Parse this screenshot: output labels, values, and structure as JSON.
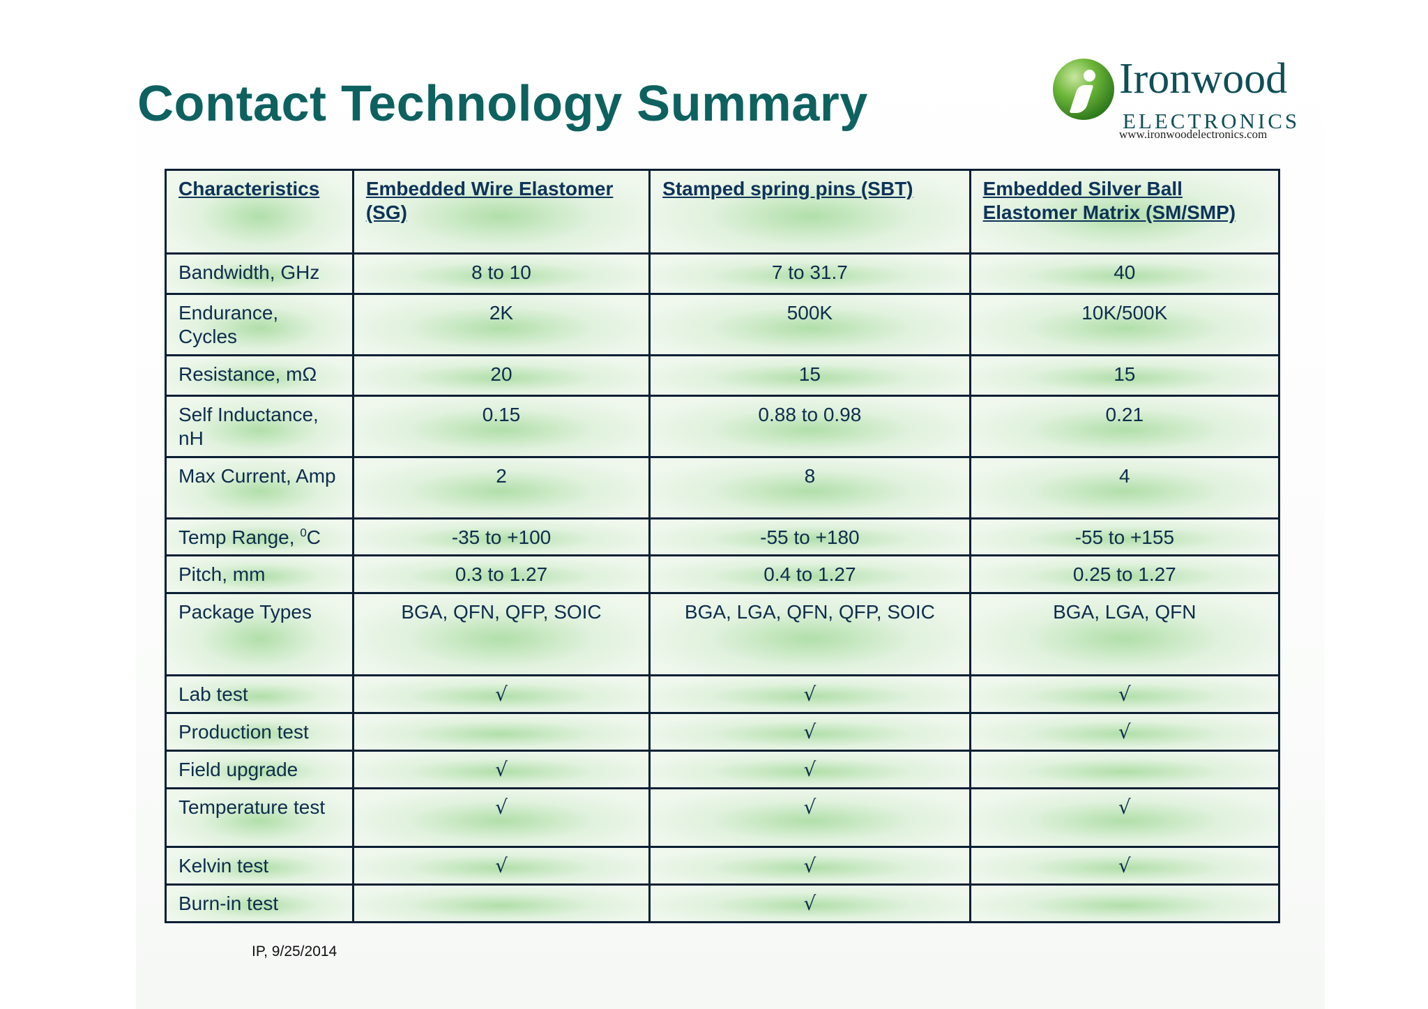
{
  "slide": {
    "title": "Contact Technology Summary",
    "footer": "IP, 9/25/2014"
  },
  "logo": {
    "icon": "ironwood-i-logo-icon",
    "name": "Ironwood",
    "subtitle": "ELECTRONICS",
    "url": "www.ironwoodelectronics.com"
  },
  "table": {
    "headers": [
      "Characteristics",
      "Embedded Wire Elastomer (SG)",
      "Stamped spring pins (SBT)",
      "Embedded Silver Ball Elastomer  Matrix (SM/SMP)"
    ],
    "rows": [
      {
        "label": "Bandwidth, GHz",
        "values": [
          "8 to 10",
          "7 to 31.7",
          "40"
        ]
      },
      {
        "label": "Endurance, Cycles",
        "values": [
          "2K",
          "500K",
          "10K/500K"
        ]
      },
      {
        "label": "Resistance, mΩ",
        "values": [
          "20",
          "15",
          "15"
        ]
      },
      {
        "label": "Self Inductance, nH",
        "values": [
          "0.15",
          "0.88 to 0.98",
          "0.21"
        ]
      },
      {
        "label": "Max Current, Amp",
        "values": [
          "2",
          "8",
          "4"
        ]
      },
      {
        "label": "Temp Range, ",
        "label_sup": "0",
        "label_suffix": "C",
        "values": [
          "-35 to +100",
          "-55 to +180",
          "-55 to +155"
        ]
      },
      {
        "label": "Pitch, mm",
        "values": [
          "0.3 to 1.27",
          "0.4 to 1.27",
          "0.25 to 1.27"
        ]
      },
      {
        "label": "Package Types",
        "values": [
          "BGA, QFN, QFP, SOIC",
          "BGA, LGA, QFN, QFP, SOIC",
          "BGA, LGA, QFN"
        ]
      },
      {
        "label": "Lab test",
        "values": [
          "√",
          "√",
          "√"
        ]
      },
      {
        "label": "Production test",
        "values": [
          "",
          "√",
          "√"
        ]
      },
      {
        "label": "Field upgrade",
        "values": [
          "√",
          "√",
          ""
        ]
      },
      {
        "label": "Temperature test",
        "values": [
          "√",
          "√",
          "√"
        ]
      },
      {
        "label": "Kelvin test",
        "values": [
          "√",
          "√",
          "√"
        ]
      },
      {
        "label": "Burn-in test",
        "values": [
          "",
          "√",
          ""
        ]
      }
    ]
  }
}
